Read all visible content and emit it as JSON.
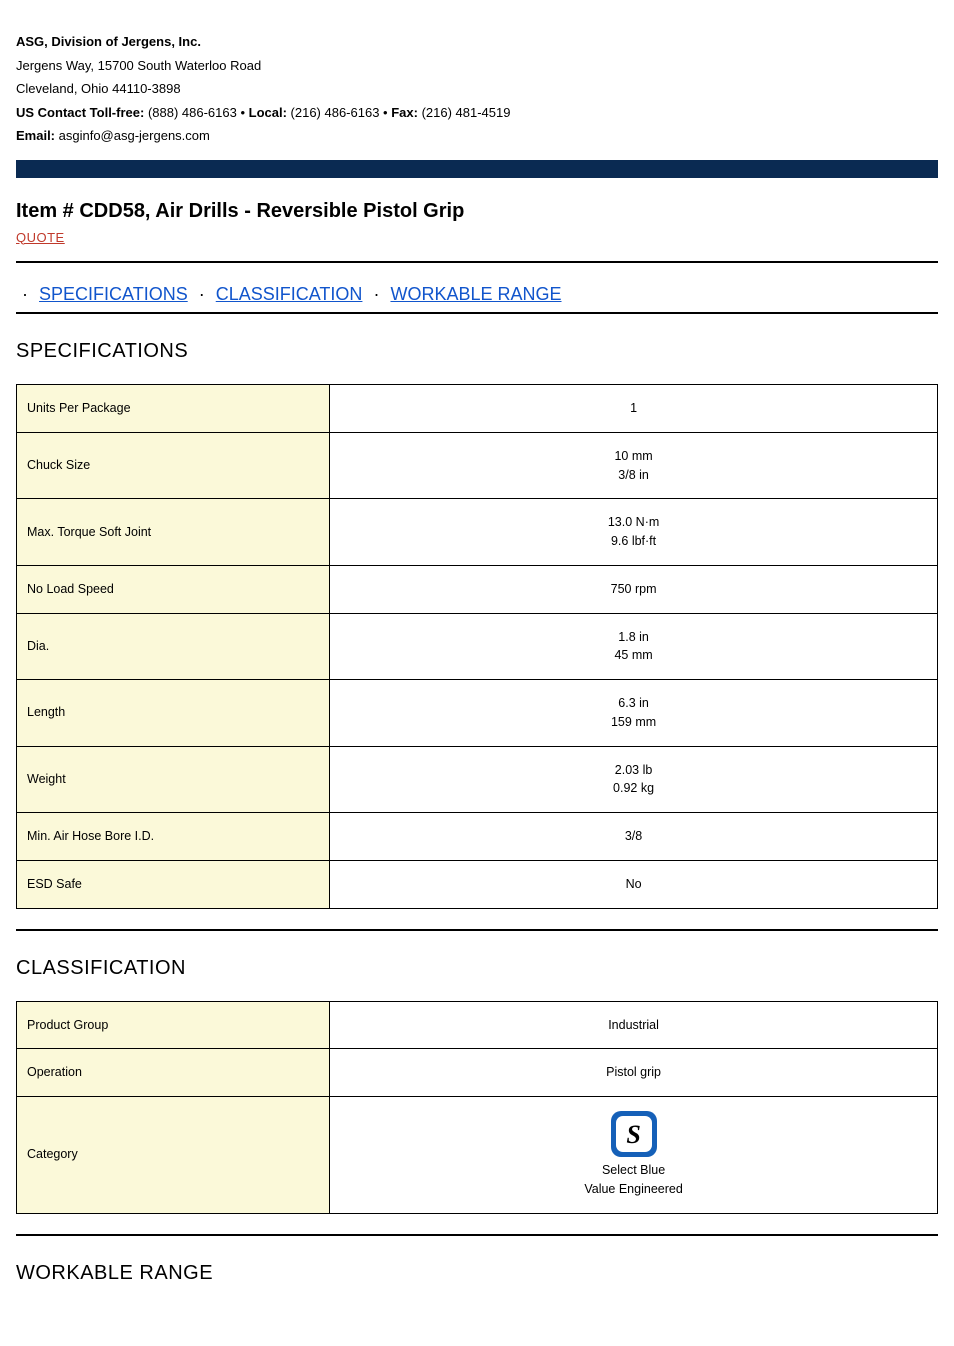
{
  "header": {
    "company": "ASG, Division of Jergens, Inc.",
    "address1": "Jergens Way, 15700 South Waterloo Road",
    "address2": "Cleveland, Ohio 44110-3898",
    "contact_label_tollfree": "US Contact Toll-free:",
    "contact_tollfree": " (888) 486-6163 • ",
    "contact_label_local": "Local:",
    "contact_local": " (216) 486-6163 • ",
    "contact_label_fax": "Fax:",
    "contact_fax": " (216) 481-4519",
    "email_label": "Email:",
    "email": " asginfo@asg-jergens.com"
  },
  "product": {
    "title": "Item # CDD58, Air Drills - Reversible Pistol Grip",
    "quote": "QUOTE"
  },
  "tabs": {
    "specifications": "SPECIFICATIONS",
    "classification": "CLASSIFICATION",
    "workable_range": "WORKABLE RANGE"
  },
  "sections": {
    "specifications_heading": "SPECIFICATIONS",
    "classification_heading": "CLASSIFICATION",
    "workable_range_heading": "WORKABLE RANGE"
  },
  "specs": {
    "rows": [
      {
        "label": "Units Per Package",
        "values": [
          "1"
        ]
      },
      {
        "label": "Chuck Size",
        "values": [
          "10 mm",
          "3/8 in"
        ]
      },
      {
        "label": "Max. Torque Soft Joint",
        "values": [
          "13.0 N·m",
          "9.6 lbf·ft"
        ]
      },
      {
        "label": "No Load Speed",
        "values": [
          "750 rpm"
        ]
      },
      {
        "label": "Dia.",
        "values": [
          "1.8 in",
          "45 mm"
        ]
      },
      {
        "label": "Length",
        "values": [
          "6.3 in",
          "159 mm"
        ]
      },
      {
        "label": "Weight",
        "values": [
          "2.03 lb",
          "0.92 kg"
        ]
      },
      {
        "label": "Min. Air Hose Bore I.D.",
        "values": [
          "3/8"
        ]
      },
      {
        "label": "ESD Safe",
        "values": [
          "No"
        ]
      }
    ]
  },
  "classification": {
    "rows": [
      {
        "label": "Product Group",
        "values": [
          "Industrial"
        ],
        "type": "text"
      },
      {
        "label": "Operation",
        "values": [
          "Pistol grip"
        ],
        "type": "text"
      },
      {
        "label": "Category",
        "values": [
          "Select Blue",
          "Value Engineered"
        ],
        "type": "badge",
        "badge_letter": "S"
      }
    ]
  },
  "colors": {
    "navbar": "#0a2a52",
    "label_bg": "#fbf9d9",
    "link": "#1155cc",
    "quote": "#c0392b",
    "badge_bg": "#1560b8"
  }
}
